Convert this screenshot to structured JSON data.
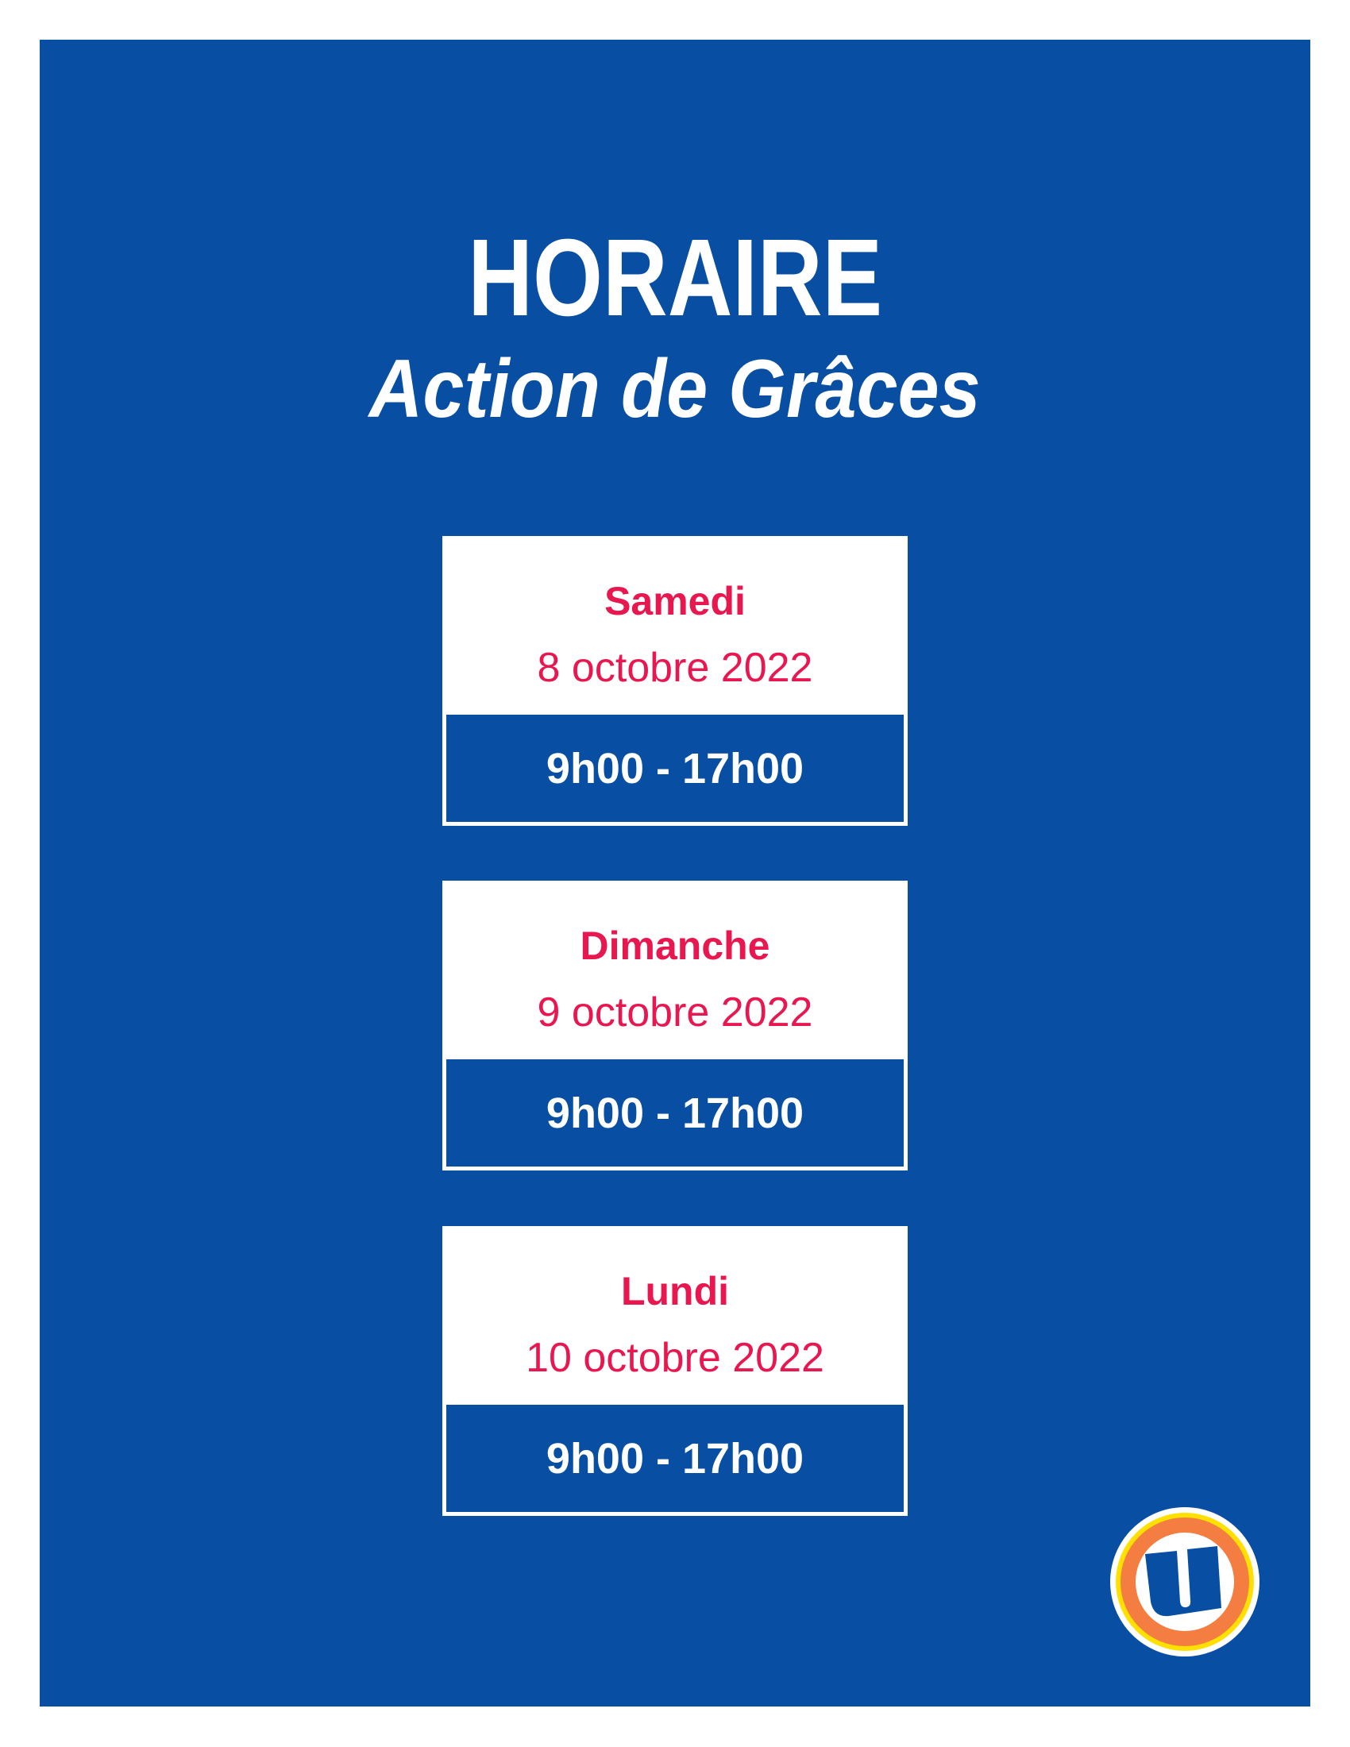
{
  "header": {
    "title": "HORAIRE",
    "subtitle": "Action de Grâces"
  },
  "schedule": [
    {
      "day": "Samedi",
      "date": "8 octobre 2022",
      "hours": "9h00 - 17h00"
    },
    {
      "day": "Dimanche",
      "date": "9 octobre 2022",
      "hours": "9h00 - 17h00"
    },
    {
      "day": "Lundi",
      "date": "10 octobre 2022",
      "hours": "9h00 - 17h00"
    }
  ],
  "logo": {
    "letter": "U",
    "icon": "u-brand-logo"
  },
  "colors": {
    "background": "#084fa3",
    "accent": "#e8174f",
    "logo_orange": "#f47e42",
    "logo_yellow": "#ffe000"
  }
}
